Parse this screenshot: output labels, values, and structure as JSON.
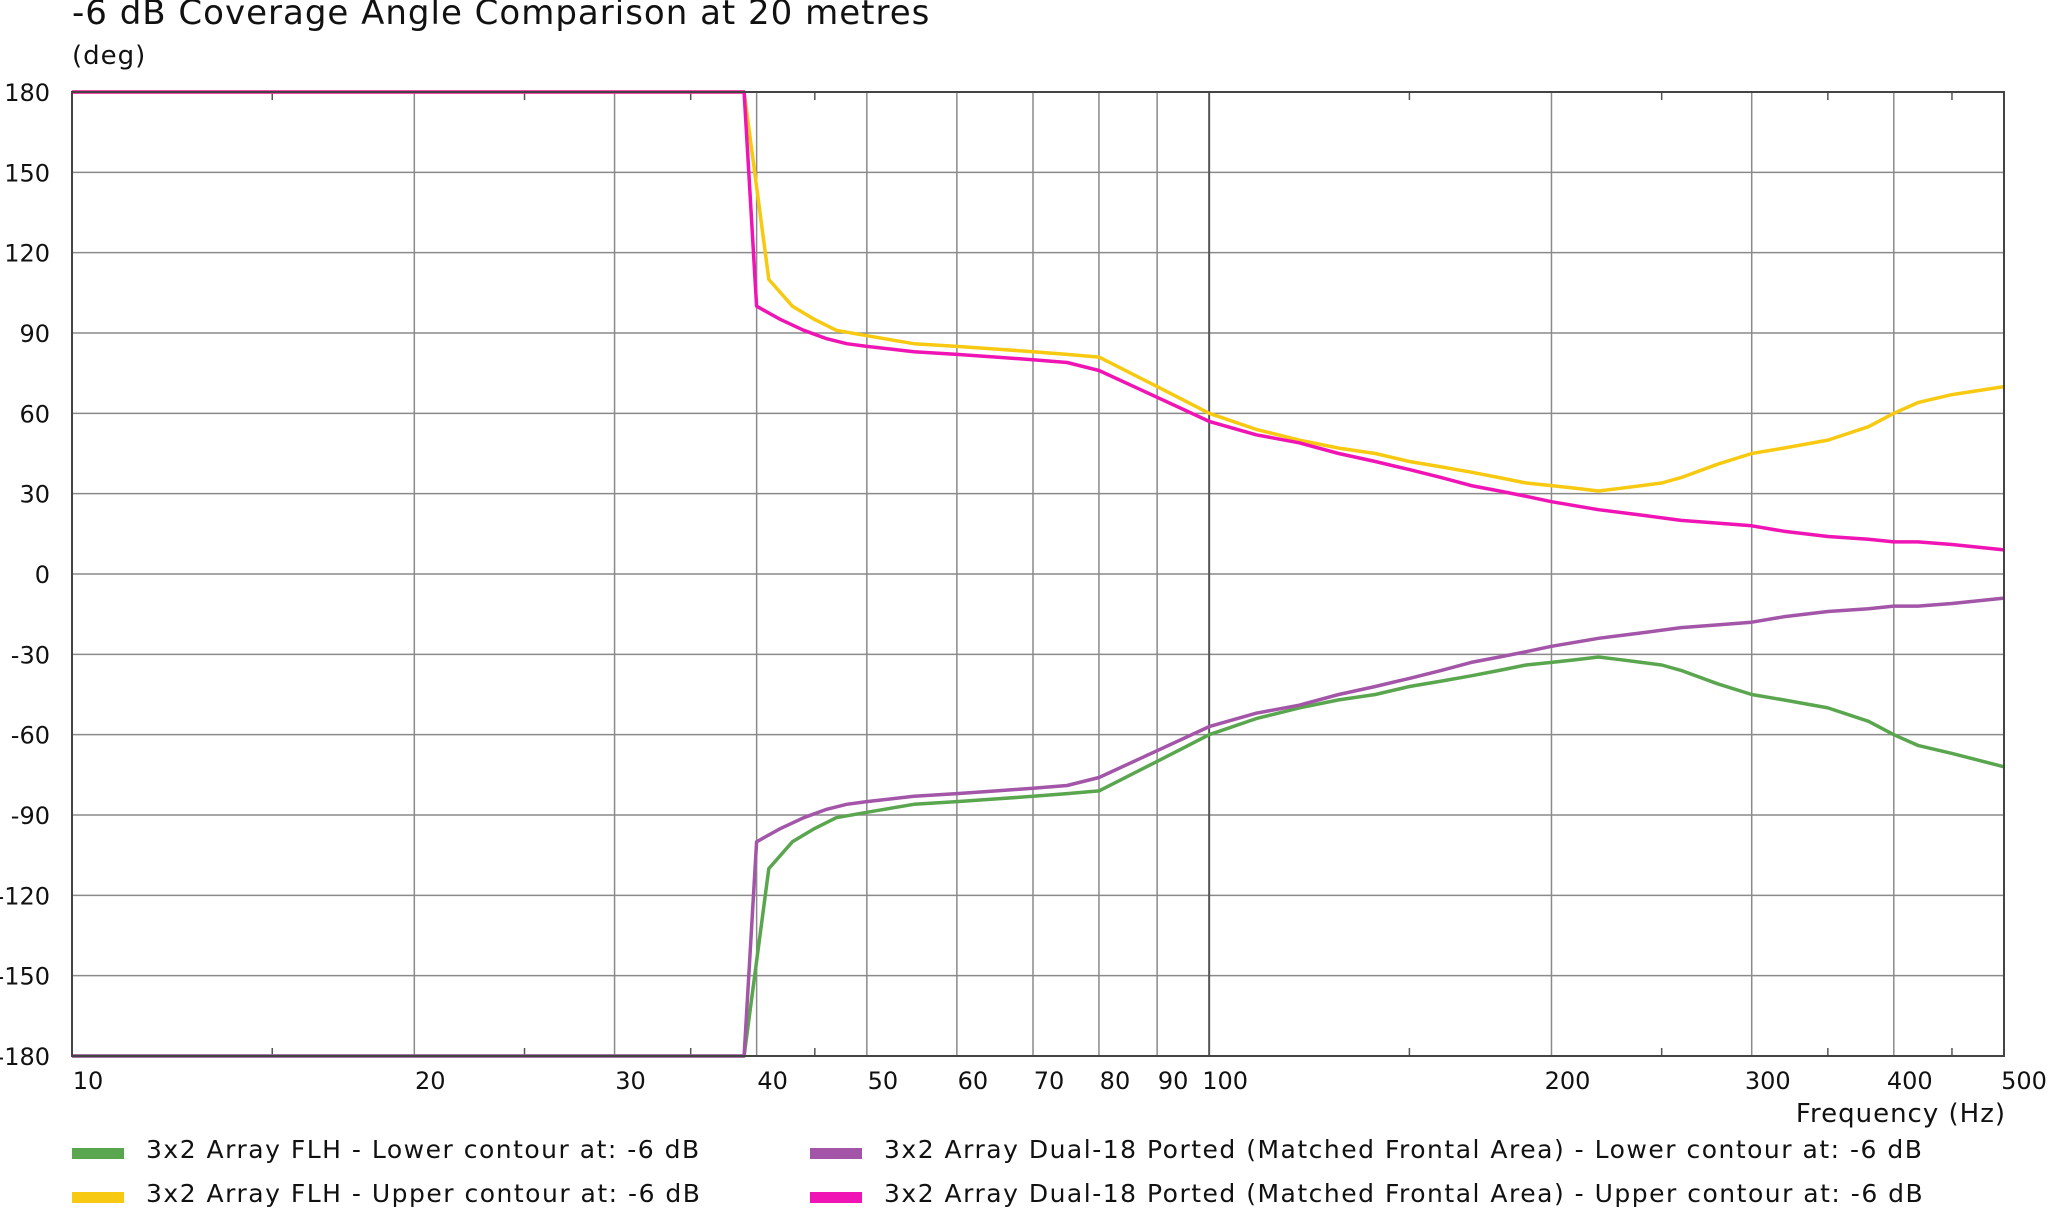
{
  "chart_data": {
    "type": "line",
    "title": "-6 dB Coverage Angle Comparison at 20 metres",
    "ylabel": "(deg)",
    "xlabel": "Frequency (Hz)",
    "x_scale": "log",
    "xlim": [
      10,
      500
    ],
    "ylim": [
      -180,
      180
    ],
    "y_ticks": [
      180,
      150,
      120,
      90,
      60,
      30,
      0,
      -30,
      -60,
      -90,
      -120,
      -150,
      -180
    ],
    "x_tick_labels": [
      10,
      20,
      30,
      40,
      50,
      60,
      70,
      80,
      90,
      100,
      200,
      300,
      400,
      500
    ],
    "grid": true,
    "legend_position": "bottom",
    "series": [
      {
        "name": "3x2 Array FLH - Lower contour at: -6 dB",
        "color": "#5aa64f",
        "x": [
          10,
          39,
          41,
          43,
          45,
          47,
          50,
          55,
          60,
          65,
          70,
          75,
          80,
          90,
          100,
          110,
          120,
          130,
          140,
          150,
          160,
          170,
          180,
          190,
          200,
          210,
          220,
          230,
          240,
          250,
          260,
          280,
          300,
          320,
          350,
          380,
          400,
          420,
          450,
          500
        ],
        "values": [
          -180,
          -180,
          -110,
          -100,
          -95,
          -91,
          -89,
          -86,
          -85,
          -84,
          -83,
          -82,
          -81,
          -70,
          -60,
          -54,
          -50,
          -47,
          -45,
          -42,
          -40,
          -38,
          -36,
          -34,
          -33,
          -32,
          -31,
          -32,
          -33,
          -34,
          -36,
          -41,
          -45,
          -47,
          -50,
          -55,
          -60,
          -64,
          -67,
          -72
        ]
      },
      {
        "name": "3x2 Array FLH - Upper contour at: -6 dB",
        "color": "#f7c911",
        "x": [
          10,
          39,
          41,
          43,
          45,
          47,
          50,
          55,
          60,
          65,
          70,
          75,
          80,
          90,
          100,
          110,
          120,
          130,
          140,
          150,
          160,
          170,
          180,
          190,
          200,
          210,
          220,
          230,
          240,
          250,
          260,
          280,
          300,
          320,
          350,
          380,
          400,
          420,
          450,
          500
        ],
        "values": [
          180,
          180,
          110,
          100,
          95,
          91,
          89,
          86,
          85,
          84,
          83,
          82,
          81,
          70,
          60,
          54,
          50,
          47,
          45,
          42,
          40,
          38,
          36,
          34,
          33,
          32,
          31,
          32,
          33,
          34,
          36,
          41,
          45,
          47,
          50,
          55,
          60,
          64,
          67,
          70
        ]
      },
      {
        "name": "3x2 Array Dual-18 Ported (Matched Frontal Area) - Lower contour at: -6 dB",
        "color": "#a356a8",
        "x": [
          10,
          39,
          40,
          42,
          44,
          46,
          48,
          50,
          55,
          60,
          65,
          70,
          75,
          80,
          90,
          100,
          110,
          120,
          130,
          140,
          150,
          160,
          170,
          180,
          190,
          200,
          220,
          240,
          260,
          280,
          300,
          320,
          350,
          380,
          400,
          420,
          450,
          500
        ],
        "values": [
          -180,
          -180,
          -100,
          -95,
          -91,
          -88,
          -86,
          -85,
          -83,
          -82,
          -81,
          -80,
          -79,
          -76,
          -66,
          -57,
          -52,
          -49,
          -45,
          -42,
          -39,
          -36,
          -33,
          -31,
          -29,
          -27,
          -24,
          -22,
          -20,
          -19,
          -18,
          -16,
          -14,
          -13,
          -12,
          -12,
          -11,
          -9
        ]
      },
      {
        "name": "3x2 Array Dual-18 Ported (Matched Frontal Area) - Upper contour at: -6 dB",
        "color": "#f014b4",
        "x": [
          10,
          39,
          40,
          42,
          44,
          46,
          48,
          50,
          55,
          60,
          65,
          70,
          75,
          80,
          90,
          100,
          110,
          120,
          130,
          140,
          150,
          160,
          170,
          180,
          190,
          200,
          220,
          240,
          260,
          280,
          300,
          320,
          350,
          380,
          400,
          420,
          450,
          500
        ],
        "values": [
          180,
          180,
          100,
          95,
          91,
          88,
          86,
          85,
          83,
          82,
          81,
          80,
          79,
          76,
          66,
          57,
          52,
          49,
          45,
          42,
          39,
          36,
          33,
          31,
          29,
          27,
          24,
          22,
          20,
          19,
          18,
          16,
          14,
          13,
          12,
          12,
          11,
          9
        ]
      }
    ]
  }
}
